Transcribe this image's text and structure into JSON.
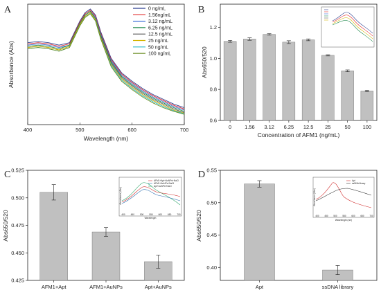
{
  "chart_data": [
    {
      "panel": "A",
      "type": "line",
      "xlabel": "Wavelength (nm)",
      "ylabel": "Absorbance (Abs)",
      "xlim": [
        400,
        700
      ],
      "ylim": [
        0,
        1
      ],
      "x_ticks": [
        "400",
        "500",
        "600",
        "700"
      ],
      "grid": false,
      "legend_position": "top-right",
      "series": [
        {
          "name": "0 ng/mL",
          "color": "#2c3e8f",
          "x": [
            400,
            420,
            440,
            460,
            480,
            500,
            510,
            520,
            530,
            540,
            560,
            580,
            600,
            620,
            640,
            660,
            680,
            700
          ],
          "y": [
            0.68,
            0.69,
            0.68,
            0.66,
            0.68,
            0.86,
            0.93,
            0.96,
            0.91,
            0.77,
            0.55,
            0.43,
            0.36,
            0.3,
            0.25,
            0.21,
            0.17,
            0.14
          ]
        },
        {
          "name": "1.56ng/mL",
          "color": "#e02b2b",
          "x": [
            400,
            420,
            440,
            460,
            480,
            500,
            510,
            520,
            530,
            540,
            560,
            580,
            600,
            620,
            640,
            660,
            680,
            700
          ],
          "y": [
            0.67,
            0.68,
            0.67,
            0.65,
            0.67,
            0.85,
            0.92,
            0.95,
            0.9,
            0.76,
            0.54,
            0.42,
            0.35,
            0.29,
            0.24,
            0.2,
            0.16,
            0.13
          ]
        },
        {
          "name": "3.12 ng/mL",
          "color": "#3a6fd8",
          "x": [
            400,
            420,
            440,
            460,
            480,
            500,
            510,
            520,
            530,
            540,
            560,
            580,
            600,
            620,
            640,
            660,
            680,
            700
          ],
          "y": [
            0.66,
            0.67,
            0.66,
            0.64,
            0.66,
            0.84,
            0.91,
            0.94,
            0.89,
            0.75,
            0.53,
            0.41,
            0.34,
            0.28,
            0.23,
            0.19,
            0.15,
            0.12
          ]
        },
        {
          "name": "6.25 ng/mL",
          "color": "#1f8a4c",
          "x": [
            400,
            420,
            440,
            460,
            480,
            500,
            510,
            520,
            530,
            540,
            560,
            580,
            600,
            620,
            640,
            660,
            680,
            700
          ],
          "y": [
            0.65,
            0.66,
            0.65,
            0.63,
            0.66,
            0.84,
            0.91,
            0.94,
            0.88,
            0.74,
            0.52,
            0.4,
            0.33,
            0.27,
            0.22,
            0.18,
            0.14,
            0.11
          ]
        },
        {
          "name": "12.5 ng/mL",
          "color": "#5a5a5a",
          "x": [
            400,
            420,
            440,
            460,
            480,
            500,
            510,
            520,
            530,
            540,
            560,
            580,
            600,
            620,
            640,
            660,
            680,
            700
          ],
          "y": [
            0.64,
            0.65,
            0.64,
            0.62,
            0.65,
            0.83,
            0.9,
            0.93,
            0.87,
            0.73,
            0.51,
            0.39,
            0.32,
            0.26,
            0.21,
            0.17,
            0.13,
            0.1
          ]
        },
        {
          "name": "25 ng/mL",
          "color": "#d4b400",
          "x": [
            400,
            420,
            440,
            460,
            480,
            500,
            510,
            520,
            530,
            540,
            560,
            580,
            600,
            620,
            640,
            660,
            680,
            700
          ],
          "y": [
            0.64,
            0.65,
            0.64,
            0.62,
            0.65,
            0.83,
            0.9,
            0.93,
            0.87,
            0.72,
            0.5,
            0.38,
            0.31,
            0.25,
            0.2,
            0.16,
            0.12,
            0.095
          ]
        },
        {
          "name": "50 ng/mL",
          "color": "#28b8c8",
          "x": [
            400,
            420,
            440,
            460,
            480,
            500,
            510,
            520,
            530,
            540,
            560,
            580,
            600,
            620,
            640,
            660,
            680,
            700
          ],
          "y": [
            0.63,
            0.64,
            0.63,
            0.61,
            0.64,
            0.82,
            0.89,
            0.92,
            0.86,
            0.71,
            0.49,
            0.37,
            0.3,
            0.24,
            0.19,
            0.15,
            0.115,
            0.09
          ]
        },
        {
          "name": "100 ng/mL",
          "color": "#6b8e23",
          "x": [
            400,
            420,
            440,
            460,
            480,
            500,
            510,
            520,
            530,
            540,
            560,
            580,
            600,
            620,
            640,
            660,
            680,
            700
          ],
          "y": [
            0.63,
            0.64,
            0.63,
            0.61,
            0.64,
            0.82,
            0.89,
            0.92,
            0.86,
            0.71,
            0.48,
            0.36,
            0.29,
            0.23,
            0.18,
            0.14,
            0.11,
            0.085
          ]
        }
      ]
    },
    {
      "panel": "B",
      "type": "bar",
      "xlabel": "Concentration of AFM1 (ng/mL)",
      "ylabel": "Abs650/520",
      "categories": [
        "0",
        "1.56",
        "3.12",
        "6.25",
        "12.5",
        "25",
        "50",
        "100"
      ],
      "values": [
        1.11,
        1.125,
        1.155,
        1.105,
        1.12,
        1.02,
        0.92,
        0.79
      ],
      "errors": [
        0.006,
        0.008,
        0.005,
        0.009,
        0.006,
        0.004,
        0.006,
        0.004
      ],
      "ylim": [
        0.6,
        1.35
      ],
      "y_ticks": [
        0.6,
        0.8,
        1.0,
        1.2
      ],
      "y_tick_labels": [
        "0.6",
        "0.8",
        "1.0",
        "1.2"
      ],
      "bar_color": "#c0c0c0"
    },
    {
      "panel": "C",
      "type": "bar",
      "xlabel": "",
      "ylabel": "Abs650/520",
      "categories": [
        "AFM1+Apt",
        "AFM1+AuNPs",
        "Apt+AuNPs"
      ],
      "values": [
        0.505,
        0.469,
        0.442
      ],
      "errors": [
        0.007,
        0.004,
        0.006
      ],
      "ylim": [
        0.425,
        0.525
      ],
      "y_ticks": [
        0.425,
        0.45,
        0.475,
        0.5,
        0.525
      ],
      "y_tick_labels": [
        "0.425",
        "0.450",
        "0.475",
        "0.500",
        "0.525"
      ],
      "bar_color": "#c0c0c0"
    },
    {
      "panel": "D",
      "type": "bar",
      "xlabel": "",
      "ylabel": "Abs650/520",
      "categories": [
        "Apt",
        "ssDNA library"
      ],
      "values": [
        0.529,
        0.396
      ],
      "errors": [
        0.005,
        0.007
      ],
      "ylim": [
        0.38,
        0.55
      ],
      "y_ticks": [
        0.4,
        0.45,
        0.5,
        0.55
      ],
      "y_tick_labels": [
        "0.40",
        "0.45",
        "0.50",
        "0.55"
      ],
      "bar_color": "#c0c0c0"
    }
  ],
  "insets": {
    "C": {
      "legend": [
        "AFM1+Apt+AuNPs+NaCl",
        "AFM1+AuNPs+NaCl",
        "Apt+AuNPs+NaCl"
      ],
      "colors": [
        "#d02b2b",
        "#2c6fb0",
        "#2ea66a"
      ],
      "xlabel": "Wavelength",
      "ylabel": "Absorbance (Abs)",
      "x_ticks": [
        "400",
        "450",
        "500",
        "550",
        "600",
        "650",
        "700"
      ]
    },
    "D": {
      "legend": [
        "Apt",
        "ssDNA library"
      ],
      "colors": [
        "#d02b2b",
        "#333333"
      ],
      "xlabel": "Wavelength (nm)",
      "ylabel": "Absorbance (Abs)",
      "x_ticks": [
        "400",
        "450",
        "500",
        "550",
        "600",
        "650",
        "700"
      ]
    }
  }
}
